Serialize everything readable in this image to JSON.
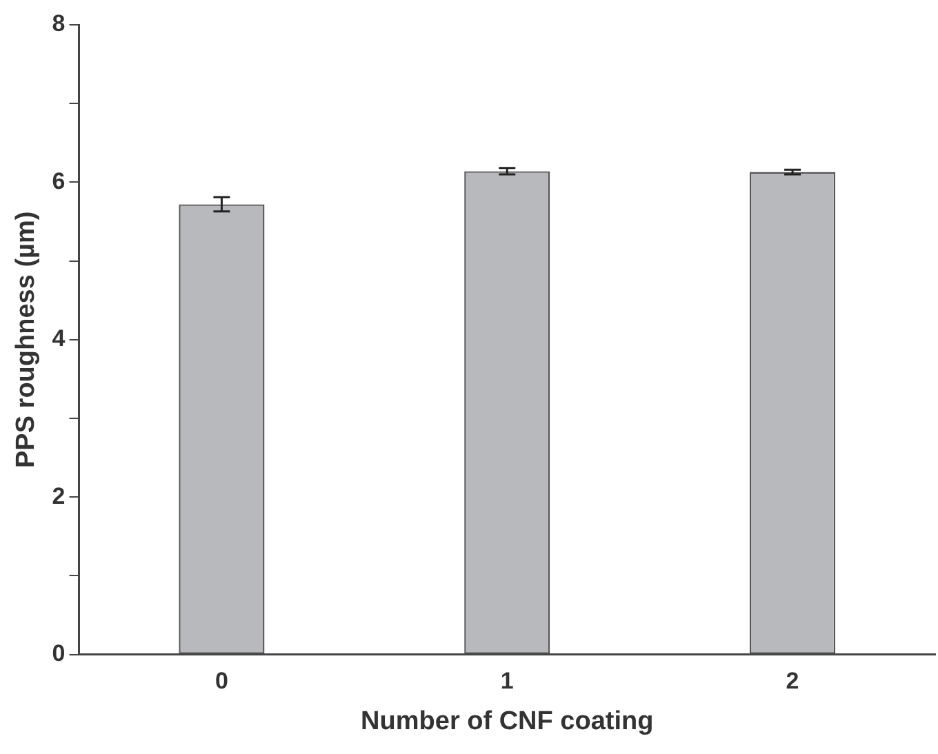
{
  "chart_data": {
    "type": "bar",
    "xlabel": "Number of CNF coating",
    "ylabel": "PPS roughness (µm)",
    "categories": [
      "0",
      "1",
      "2"
    ],
    "values": [
      5.72,
      6.14,
      6.13
    ],
    "errors": [
      0.09,
      0.04,
      0.03
    ],
    "color": "#b8b9bc",
    "ylim": [
      0,
      8
    ],
    "yticks": [
      0,
      {
        "value": 1,
        "label": null
      },
      2,
      {
        "value": 3,
        "label": null
      },
      4,
      {
        "value": 5,
        "label": null
      },
      6,
      {
        "value": 7,
        "label": null
      },
      8
    ],
    "grid": false,
    "legend": false
  }
}
